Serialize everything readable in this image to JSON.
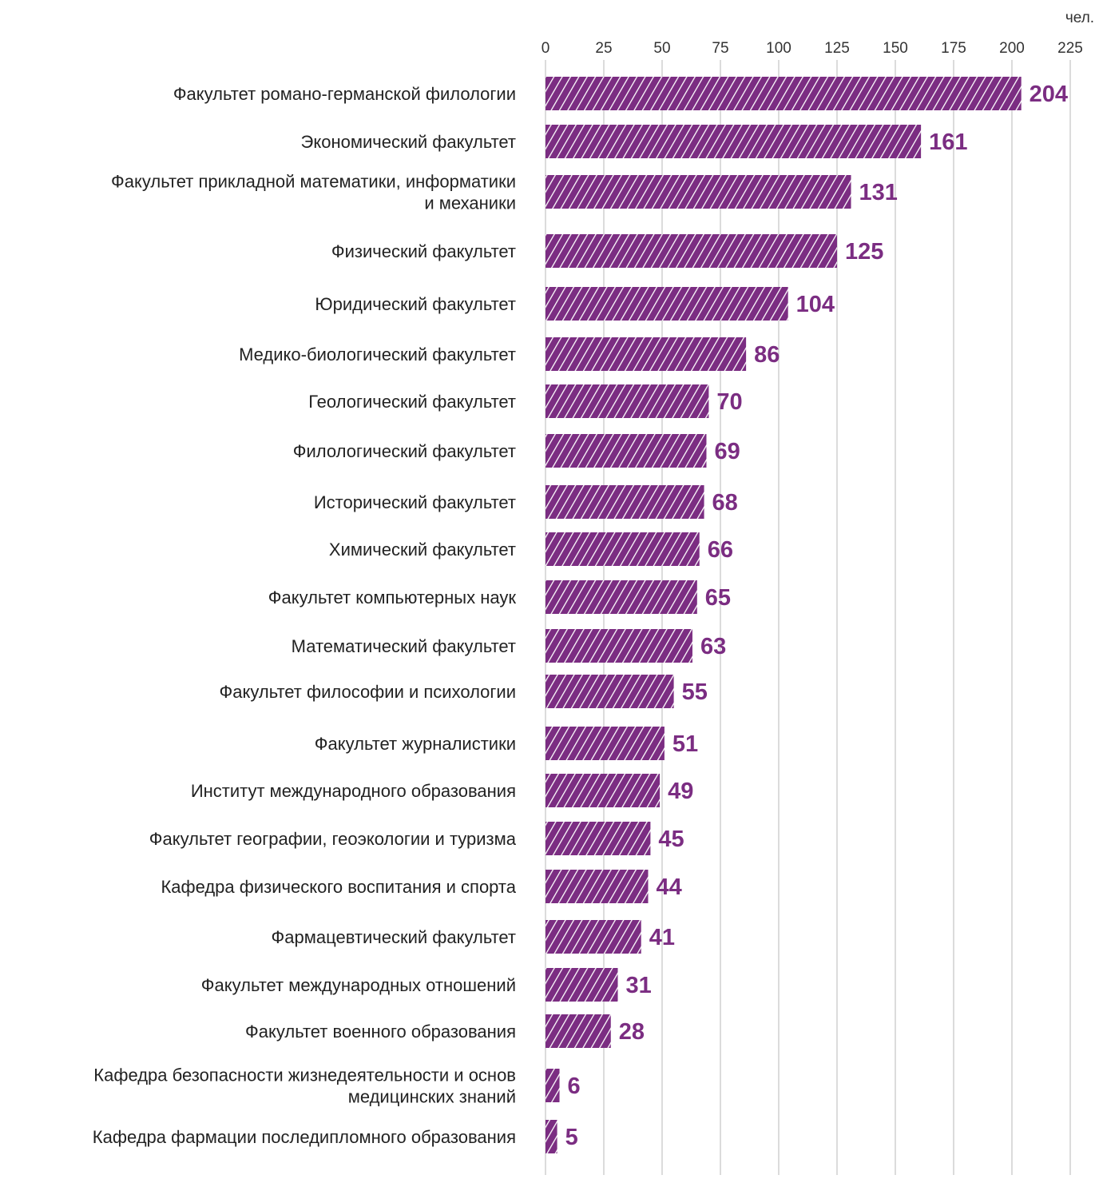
{
  "chart_data": {
    "type": "bar",
    "orientation": "horizontal",
    "title": "",
    "unit": "чел.",
    "xlim": [
      0,
      225
    ],
    "ticks": [
      0,
      25,
      50,
      75,
      100,
      125,
      150,
      175,
      200,
      225
    ],
    "grid": true,
    "bar_pattern": "diagonal-hatch",
    "bar_color": "#7b2d82",
    "value_label_color": "#7b2d82",
    "categories": [
      "Факультет романо-германской филологии",
      "Экономический факультет",
      "Факультет прикладной математики, информатики и механики",
      "Физический факультет",
      "Юридический факультет",
      "Медико-биологический факультет",
      "Геологический факультет",
      "Филологический факультет",
      "Исторический факультет",
      "Химический факультет",
      "Факультет компьютерных наук",
      "Математический факультет",
      "Факультет философии и психологии",
      "Факультет журналистики",
      "Институт международного образования",
      "Факультет географии, геоэкологии и туризма",
      "Кафедра физического воспитания и спорта",
      "Фармацевтический факультет",
      "Факультет международных отношений",
      "Факультет военного образования",
      "Кафедра безопасности жизнедеятельности и основ медицинских знаний",
      "Кафедра фармации последипломного образования"
    ],
    "category_lines": [
      [
        "Факультет романо-германской филологии"
      ],
      [
        "Экономический факультет"
      ],
      [
        "Факультет прикладной математики, информатики",
        "и механики"
      ],
      [
        "Физический факультет"
      ],
      [
        "Юридический факультет"
      ],
      [
        "Медико-биологический факультет"
      ],
      [
        "Геологический факультет"
      ],
      [
        "Филологический факультет"
      ],
      [
        "Исторический факультет"
      ],
      [
        "Химический факультет"
      ],
      [
        "Факультет компьютерных наук"
      ],
      [
        "Математический факультет"
      ],
      [
        "Факультет философии и психологии"
      ],
      [
        "Факультет журналистики"
      ],
      [
        "Институт международного образования"
      ],
      [
        "Факультет географии, геоэкологии и туризма"
      ],
      [
        "Кафедра физического воспитания и спорта"
      ],
      [
        "Фармацевтический факультет"
      ],
      [
        "Факультет международных отношений"
      ],
      [
        "Факультет военного образования"
      ],
      [
        "Кафедра безопасности жизнедеятельности и основ",
        "медицинских знаний"
      ],
      [
        "Кафедра фармации последипломного образования"
      ]
    ],
    "values": [
      204,
      161,
      131,
      125,
      104,
      86,
      70,
      69,
      68,
      66,
      65,
      63,
      55,
      51,
      49,
      45,
      44,
      41,
      31,
      28,
      6,
      5
    ]
  }
}
